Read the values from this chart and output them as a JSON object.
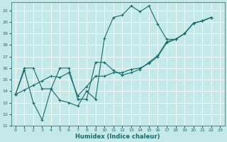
{
  "xlabel": "Humidex (Indice chaleur)",
  "xlim": [
    -0.5,
    23.5
  ],
  "ylim": [
    11,
    21.7
  ],
  "yticks": [
    11,
    12,
    13,
    14,
    15,
    16,
    17,
    18,
    19,
    20,
    21
  ],
  "xticks": [
    0,
    1,
    2,
    3,
    4,
    5,
    6,
    7,
    8,
    9,
    10,
    11,
    12,
    13,
    14,
    15,
    16,
    17,
    18,
    19,
    20,
    21,
    22,
    23
  ],
  "bg_color": "#c5e8e8",
  "line_color": "#1a6b6b",
  "grid_color": "#ffffff",
  "line1_x": [
    0,
    1,
    2,
    3,
    4,
    5,
    6,
    7,
    8,
    9,
    10,
    11,
    12,
    13,
    14,
    15,
    16,
    17,
    18,
    19,
    20,
    21,
    22
  ],
  "line1_y": [
    13.7,
    15.8,
    13.0,
    11.5,
    14.2,
    13.2,
    13.0,
    12.7,
    14.0,
    13.3,
    18.6,
    20.4,
    20.6,
    21.4,
    20.9,
    21.4,
    19.8,
    18.5,
    18.5,
    19.0,
    19.9,
    20.1,
    20.4
  ],
  "line2_x": [
    0,
    1,
    2,
    3,
    4,
    5,
    6,
    7,
    8,
    9,
    10,
    11,
    12,
    13,
    14,
    15,
    16,
    17,
    18,
    19,
    20,
    21,
    22
  ],
  "line2_y": [
    13.7,
    16.0,
    16.0,
    14.2,
    14.2,
    16.0,
    16.0,
    13.3,
    13.3,
    16.5,
    16.5,
    15.8,
    15.4,
    15.6,
    15.9,
    16.5,
    17.1,
    18.3,
    18.5,
    19.0,
    19.9,
    20.1,
    20.4
  ],
  "line3_x": [
    0,
    1,
    2,
    3,
    4,
    5,
    6,
    7,
    8,
    9,
    10,
    11,
    12,
    13,
    14,
    15,
    16,
    17,
    18,
    19,
    20,
    21,
    22
  ],
  "line3_y": [
    13.7,
    14.1,
    14.5,
    14.9,
    15.3,
    15.2,
    15.6,
    13.6,
    14.4,
    15.3,
    15.3,
    15.6,
    15.6,
    15.9,
    16.0,
    16.4,
    17.0,
    18.2,
    18.5,
    19.0,
    19.9,
    20.1,
    20.4
  ]
}
